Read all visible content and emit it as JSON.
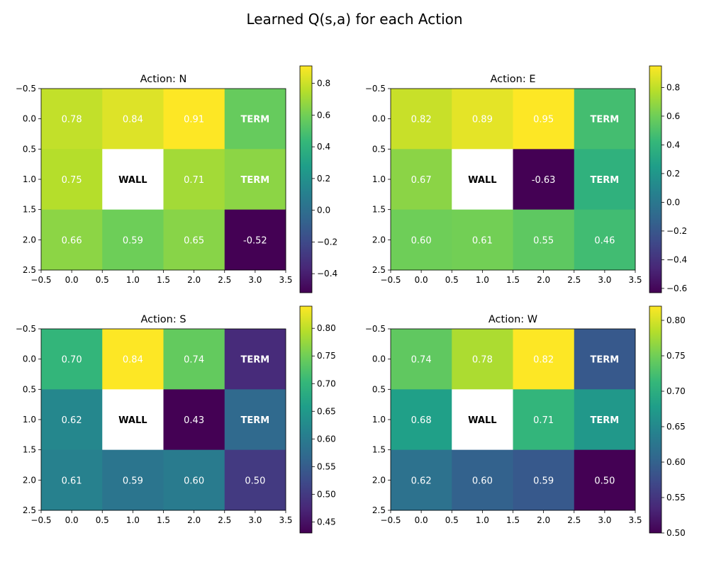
{
  "figure_title": "Learned Q(s,a) for each Action",
  "wall_label": "WALL",
  "term_label": "TERM",
  "colormap": [
    "#440154",
    "#482878",
    "#3e4989",
    "#31688e",
    "#26828e",
    "#1f9e89",
    "#35b779",
    "#6ece58",
    "#b5de2b",
    "#fde725"
  ],
  "chart_data": [
    {
      "type": "heatmap",
      "title": "Action: N",
      "x_ticks": [
        "−0.5",
        "0.0",
        "0.5",
        "1.0",
        "1.5",
        "2.0",
        "2.5",
        "3.0",
        "3.5"
      ],
      "y_ticks": [
        "−0.5",
        "0.0",
        "0.5",
        "1.0",
        "1.5",
        "2.0",
        "2.5"
      ],
      "xlim": [
        -0.5,
        3.5
      ],
      "ylim": [
        2.5,
        -0.5
      ],
      "vmin": -0.52,
      "vmax": 0.91,
      "colorbar_ticks": [
        {
          "v": 0.8,
          "label": "0.8"
        },
        {
          "v": 0.6,
          "label": "0.6"
        },
        {
          "v": 0.4,
          "label": "0.4"
        },
        {
          "v": 0.2,
          "label": "0.2"
        },
        {
          "v": 0.0,
          "label": "0.0"
        },
        {
          "v": -0.2,
          "label": "−0.2"
        },
        {
          "v": -0.4,
          "label": "−0.4"
        }
      ],
      "cells": [
        [
          {
            "v": 0.78,
            "label": "0.78"
          },
          {
            "v": 0.84,
            "label": "0.84"
          },
          {
            "v": 0.91,
            "label": "0.91"
          },
          {
            "v": 0.57,
            "label": "TERM",
            "kind": "term"
          }
        ],
        [
          {
            "v": 0.75,
            "label": "0.75"
          },
          {
            "v": null,
            "label": "WALL",
            "kind": "wall"
          },
          {
            "v": 0.71,
            "label": "0.71"
          },
          {
            "v": 0.66,
            "label": "TERM",
            "kind": "term"
          }
        ],
        [
          {
            "v": 0.66,
            "label": "0.66"
          },
          {
            "v": 0.59,
            "label": "0.59"
          },
          {
            "v": 0.65,
            "label": "0.65"
          },
          {
            "v": -0.52,
            "label": "-0.52"
          }
        ]
      ]
    },
    {
      "type": "heatmap",
      "title": "Action: E",
      "x_ticks": [
        "−0.5",
        "0.0",
        "0.5",
        "1.0",
        "1.5",
        "2.0",
        "2.5",
        "3.0",
        "3.5"
      ],
      "y_ticks": [
        "−0.5",
        "0.0",
        "0.5",
        "1.0",
        "1.5",
        "2.0",
        "2.5"
      ],
      "xlim": [
        -0.5,
        3.5
      ],
      "ylim": [
        2.5,
        -0.5
      ],
      "vmin": -0.63,
      "vmax": 0.95,
      "colorbar_ticks": [
        {
          "v": 0.8,
          "label": "0.8"
        },
        {
          "v": 0.6,
          "label": "0.6"
        },
        {
          "v": 0.4,
          "label": "0.4"
        },
        {
          "v": 0.2,
          "label": "0.2"
        },
        {
          "v": 0.0,
          "label": "0.0"
        },
        {
          "v": -0.2,
          "label": "−0.2"
        },
        {
          "v": -0.4,
          "label": "−0.4"
        },
        {
          "v": -0.6,
          "label": "−0.6"
        }
      ],
      "cells": [
        [
          {
            "v": 0.82,
            "label": "0.82"
          },
          {
            "v": 0.89,
            "label": "0.89"
          },
          {
            "v": 0.95,
            "label": "0.95"
          },
          {
            "v": 0.47,
            "label": "TERM",
            "kind": "term"
          }
        ],
        [
          {
            "v": 0.67,
            "label": "0.67"
          },
          {
            "v": null,
            "label": "WALL",
            "kind": "wall"
          },
          {
            "v": -0.63,
            "label": "-0.63"
          },
          {
            "v": 0.38,
            "label": "TERM",
            "kind": "term"
          }
        ],
        [
          {
            "v": 0.6,
            "label": "0.60"
          },
          {
            "v": 0.61,
            "label": "0.61"
          },
          {
            "v": 0.55,
            "label": "0.55"
          },
          {
            "v": 0.46,
            "label": "0.46"
          }
        ]
      ]
    },
    {
      "type": "heatmap",
      "title": "Action: S",
      "x_ticks": [
        "−0.5",
        "0.0",
        "0.5",
        "1.0",
        "1.5",
        "2.0",
        "2.5",
        "3.0",
        "3.5"
      ],
      "y_ticks": [
        "−0.5",
        "0.0",
        "0.5",
        "1.0",
        "1.5",
        "2.0",
        "2.5"
      ],
      "xlim": [
        -0.5,
        3.5
      ],
      "ylim": [
        2.5,
        -0.5
      ],
      "vmin": 0.43,
      "vmax": 0.84,
      "colorbar_ticks": [
        {
          "v": 0.8,
          "label": "0.80"
        },
        {
          "v": 0.75,
          "label": "0.75"
        },
        {
          "v": 0.7,
          "label": "0.70"
        },
        {
          "v": 0.65,
          "label": "0.65"
        },
        {
          "v": 0.6,
          "label": "0.60"
        },
        {
          "v": 0.55,
          "label": "0.55"
        },
        {
          "v": 0.5,
          "label": "0.50"
        },
        {
          "v": 0.45,
          "label": "0.45"
        }
      ],
      "cells": [
        [
          {
            "v": 0.7,
            "label": "0.70"
          },
          {
            "v": 0.84,
            "label": "0.84"
          },
          {
            "v": 0.74,
            "label": "0.74"
          },
          {
            "v": 0.48,
            "label": "TERM",
            "kind": "term"
          }
        ],
        [
          {
            "v": 0.62,
            "label": "0.62"
          },
          {
            "v": null,
            "label": "WALL",
            "kind": "wall"
          },
          {
            "v": 0.43,
            "label": "0.43"
          },
          {
            "v": 0.57,
            "label": "TERM",
            "kind": "term"
          }
        ],
        [
          {
            "v": 0.61,
            "label": "0.61"
          },
          {
            "v": 0.59,
            "label": "0.59"
          },
          {
            "v": 0.6,
            "label": "0.60"
          },
          {
            "v": 0.5,
            "label": "0.50"
          }
        ]
      ]
    },
    {
      "type": "heatmap",
      "title": "Action: W",
      "x_ticks": [
        "−0.5",
        "0.0",
        "0.5",
        "1.0",
        "1.5",
        "2.0",
        "2.5",
        "3.0",
        "3.5"
      ],
      "y_ticks": [
        "−0.5",
        "0.0",
        "0.5",
        "1.0",
        "1.5",
        "2.0",
        "2.5"
      ],
      "xlim": [
        -0.5,
        3.5
      ],
      "ylim": [
        2.5,
        -0.5
      ],
      "vmin": 0.5,
      "vmax": 0.82,
      "colorbar_ticks": [
        {
          "v": 0.8,
          "label": "0.80"
        },
        {
          "v": 0.75,
          "label": "0.75"
        },
        {
          "v": 0.7,
          "label": "0.70"
        },
        {
          "v": 0.65,
          "label": "0.65"
        },
        {
          "v": 0.6,
          "label": "0.60"
        },
        {
          "v": 0.55,
          "label": "0.55"
        },
        {
          "v": 0.5,
          "label": "0.50"
        }
      ],
      "cells": [
        [
          {
            "v": 0.74,
            "label": "0.74"
          },
          {
            "v": 0.78,
            "label": "0.78"
          },
          {
            "v": 0.82,
            "label": "0.82"
          },
          {
            "v": 0.59,
            "label": "TERM",
            "kind": "term"
          }
        ],
        [
          {
            "v": 0.68,
            "label": "0.68"
          },
          {
            "v": null,
            "label": "WALL",
            "kind": "wall"
          },
          {
            "v": 0.71,
            "label": "0.71"
          },
          {
            "v": 0.67,
            "label": "TERM",
            "kind": "term"
          }
        ],
        [
          {
            "v": 0.62,
            "label": "0.62"
          },
          {
            "v": 0.6,
            "label": "0.60"
          },
          {
            "v": 0.59,
            "label": "0.59"
          },
          {
            "v": 0.5,
            "label": "0.50"
          }
        ]
      ]
    }
  ]
}
